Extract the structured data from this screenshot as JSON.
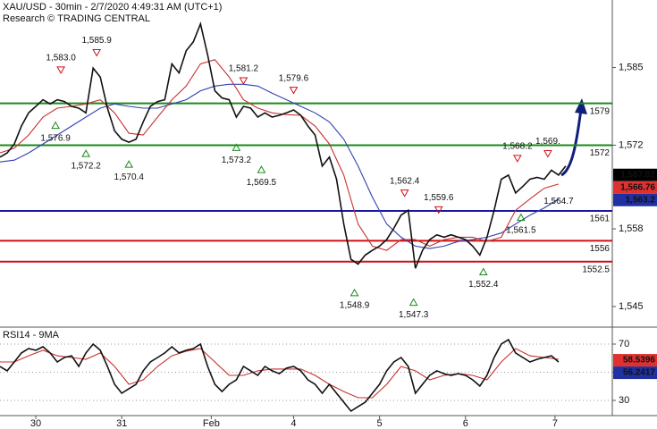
{
  "chart_data": [
    {
      "type": "line",
      "title": "XAU/USD - 30min - 2/7/2020 4:49:31 AM (UTC+1)",
      "subtitle": "Research © TRADING CENTRAL",
      "xlim": [
        0,
        171
      ],
      "xticks": [
        {
          "value": 10,
          "label": "30"
        },
        {
          "value": 34,
          "label": "31"
        },
        {
          "value": 59,
          "label": "Feb"
        },
        {
          "value": 82,
          "label": "4"
        },
        {
          "value": 106,
          "label": "5"
        },
        {
          "value": 130,
          "label": "6"
        },
        {
          "value": 155,
          "label": "7"
        }
      ],
      "ylim": [
        1541.7,
        1596
      ],
      "yticks": [
        {
          "value": 1545,
          "label": "1,545"
        },
        {
          "value": 1558,
          "label": "1,558"
        },
        {
          "value": 1572,
          "label": "1,572"
        },
        {
          "value": 1585,
          "label": "1,585"
        }
      ],
      "grid": false,
      "series": [
        {
          "color": "#3040b0",
          "x": [
            0,
            4,
            8,
            12,
            16,
            20,
            24,
            28,
            32,
            36,
            40,
            44,
            48,
            52,
            56,
            60,
            64,
            68,
            72,
            76,
            80,
            84,
            88,
            92,
            96,
            100,
            104,
            108,
            112,
            116,
            120,
            124,
            128,
            132,
            136,
            140,
            144,
            148,
            152,
            156
          ],
          "values": [
            1569.2,
            1569.5,
            1570.7,
            1572.2,
            1573.7,
            1575.2,
            1576.7,
            1578.2,
            1578.9,
            1578.5,
            1578.2,
            1578.2,
            1578.9,
            1579.6,
            1581.1,
            1581.9,
            1582.2,
            1582.2,
            1581.9,
            1580.7,
            1579.6,
            1578.5,
            1577.4,
            1575.9,
            1573.0,
            1568.5,
            1563.3,
            1558.8,
            1556.6,
            1555.1,
            1554.7,
            1555.1,
            1555.9,
            1556.2,
            1556.6,
            1557.3,
            1558.8,
            1560.3,
            1561.5,
            1563.0
          ]
        },
        {
          "color": "#c83030",
          "x": [
            0,
            4,
            8,
            12,
            16,
            20,
            24,
            28,
            32,
            36,
            40,
            44,
            48,
            52,
            56,
            60,
            64,
            68,
            72,
            76,
            80,
            84,
            88,
            92,
            96,
            100,
            104,
            108,
            112,
            116,
            120,
            124,
            128,
            132,
            136,
            140,
            144,
            148,
            152,
            156
          ],
          "values": [
            1570.7,
            1571.5,
            1573.7,
            1576.7,
            1578.2,
            1578.5,
            1578.9,
            1579.6,
            1577.4,
            1574.0,
            1573.7,
            1576.7,
            1579.6,
            1581.9,
            1585.6,
            1586.3,
            1583.4,
            1579.6,
            1578.2,
            1577.4,
            1577.1,
            1577.0,
            1575.2,
            1572.2,
            1567.0,
            1558.8,
            1555.1,
            1554.4,
            1556.2,
            1556.2,
            1555.1,
            1556.2,
            1556.6,
            1556.6,
            1555.9,
            1556.6,
            1561.1,
            1563.0,
            1564.8,
            1565.5
          ]
        },
        {
          "color": "#111111",
          "x": [
            0,
            2,
            4,
            6,
            8,
            10,
            12,
            14,
            16,
            18,
            20,
            22,
            24,
            26,
            28,
            30,
            32,
            34,
            36,
            38,
            40,
            42,
            44,
            46,
            48,
            50,
            52,
            54,
            56,
            58,
            60,
            62,
            64,
            66,
            68,
            70,
            72,
            74,
            76,
            78,
            80,
            82,
            84,
            86,
            88,
            90,
            92,
            94,
            96,
            98,
            100,
            102,
            104,
            106,
            108,
            110,
            112,
            114,
            116,
            118,
            120,
            122,
            124,
            126,
            128,
            130,
            132,
            134,
            136,
            138,
            140,
            142,
            144,
            146,
            148,
            150,
            152,
            154,
            156,
            158
          ],
          "values": [
            1570.0,
            1570.7,
            1572.2,
            1575.2,
            1577.4,
            1578.5,
            1579.6,
            1578.9,
            1579.6,
            1579.3,
            1578.5,
            1578.2,
            1577.4,
            1584.9,
            1583.4,
            1578.2,
            1574.4,
            1573.0,
            1572.5,
            1573.0,
            1575.9,
            1578.5,
            1579.3,
            1579.6,
            1585.6,
            1584.1,
            1587.8,
            1589.3,
            1592.3,
            1587.1,
            1581.1,
            1579.9,
            1579.6,
            1576.7,
            1578.5,
            1578.2,
            1576.7,
            1577.4,
            1576.7,
            1577.0,
            1577.4,
            1577.9,
            1577.0,
            1575.2,
            1573.7,
            1568.5,
            1570.0,
            1566.3,
            1558.8,
            1552.9,
            1552.1,
            1553.6,
            1554.4,
            1555.1,
            1556.2,
            1558.1,
            1560.3,
            1561.1,
            1551.4,
            1554.4,
            1556.2,
            1557.0,
            1556.6,
            1557.0,
            1556.6,
            1556.2,
            1555.1,
            1553.6,
            1556.6,
            1561.1,
            1566.3,
            1567.0,
            1564.0,
            1565.1,
            1566.3,
            1566.6,
            1566.3,
            1567.8,
            1567.0,
            1568.5
          ]
        }
      ],
      "levels": [
        {
          "value": 1579,
          "color": "#1a8a1a"
        },
        {
          "value": 1572,
          "color": "#1a8a1a"
        },
        {
          "value": 1561,
          "color": "#1a1aa0"
        },
        {
          "value": 1556,
          "color": "#d01010"
        },
        {
          "value": 1552.5,
          "color": "#d01010"
        }
      ],
      "annotations": [
        {
          "label": "1,583.0",
          "value": 1583.0,
          "x": 17,
          "kind": "high"
        },
        {
          "label": "1,585.9",
          "value": 1585.9,
          "x": 27,
          "kind": "high"
        },
        {
          "label": "1,576.9",
          "value": 1576.9,
          "x": 15.5,
          "kind": "low"
        },
        {
          "label": "1,572.2",
          "value": 1572.2,
          "x": 24,
          "kind": "low"
        },
        {
          "label": "1,570.4",
          "value": 1570.4,
          "x": 36,
          "kind": "low"
        },
        {
          "label": "1,581.2",
          "value": 1581.2,
          "x": 68,
          "kind": "high"
        },
        {
          "label": "1,579.6",
          "value": 1579.6,
          "x": 82,
          "kind": "high"
        },
        {
          "label": "1,573.2",
          "value": 1573.2,
          "x": 66,
          "kind": "low"
        },
        {
          "label": "1,569.5",
          "value": 1569.5,
          "x": 73,
          "kind": "low"
        },
        {
          "label": "1,562.4",
          "value": 1562.4,
          "x": 113,
          "kind": "high"
        },
        {
          "label": "1,559.6",
          "value": 1559.6,
          "x": 122.5,
          "kind": "high"
        },
        {
          "label": "1,548.9",
          "value": 1548.9,
          "x": 99,
          "kind": "low"
        },
        {
          "label": "1,547.3",
          "value": 1547.3,
          "x": 115.5,
          "kind": "low"
        },
        {
          "label": "1,552.4",
          "value": 1552.4,
          "x": 135,
          "kind": "low"
        },
        {
          "label": "1,568.2",
          "value": 1568.2,
          "x": 144.5,
          "kind": "high"
        },
        {
          "label": "1,561.5",
          "value": 1561.5,
          "x": 145.5,
          "kind": "low"
        },
        {
          "label": "1,569.",
          "value": 1569,
          "x": 153,
          "kind": "high"
        },
        {
          "label": "1,564.7",
          "value": 1564.7,
          "x": 156,
          "kind": "note"
        }
      ],
      "price_tags": [
        {
          "value": 1567.02,
          "label": "1,567.02",
          "color": "#000000"
        },
        {
          "value": 1566.76,
          "label": "1,566.76",
          "color": "#e03030"
        },
        {
          "value": 1563.2,
          "label": "1,563.2",
          "color": "#2030a0"
        }
      ]
    },
    {
      "type": "line",
      "title": "RSI14 - 9MA",
      "ylim": [
        19.2,
        80.8
      ],
      "yticks": [
        30,
        50,
        70
      ],
      "grid": true,
      "series": [
        {
          "color": "#c83030",
          "x": [
            0,
            4,
            8,
            12,
            16,
            20,
            24,
            28,
            32,
            36,
            40,
            44,
            48,
            52,
            56,
            60,
            64,
            68,
            72,
            76,
            80,
            84,
            88,
            92,
            96,
            100,
            104,
            108,
            112,
            116,
            120,
            124,
            128,
            132,
            136,
            140,
            144,
            148,
            152,
            156
          ],
          "values": [
            57.3,
            57.3,
            61.7,
            65.6,
            61.7,
            60.5,
            59.2,
            63.7,
            54.1,
            41.4,
            44.6,
            54.1,
            61.7,
            64.9,
            66.8,
            57.3,
            47.8,
            47.8,
            51.0,
            52.3,
            52.3,
            52.3,
            47.8,
            41.4,
            36.3,
            31.9,
            31.9,
            41.4,
            54.1,
            51.0,
            44.6,
            47.8,
            49.0,
            47.8,
            44.6,
            57.3,
            66.8,
            61.7,
            60.5,
            59.2
          ]
        },
        {
          "color": "#111111",
          "x": [
            0,
            2,
            4,
            6,
            8,
            10,
            12,
            14,
            16,
            18,
            20,
            22,
            24,
            26,
            28,
            30,
            32,
            34,
            36,
            38,
            40,
            42,
            44,
            46,
            48,
            50,
            52,
            54,
            56,
            58,
            60,
            62,
            64,
            66,
            68,
            70,
            72,
            74,
            76,
            78,
            80,
            82,
            84,
            86,
            88,
            90,
            92,
            94,
            96,
            98,
            100,
            102,
            104,
            106,
            108,
            110,
            112,
            114,
            116,
            118,
            120,
            122,
            124,
            126,
            128,
            130,
            132,
            134,
            136,
            138,
            140,
            142,
            144,
            146,
            148,
            150,
            152,
            154,
            156
          ],
          "values": [
            54.1,
            51.0,
            57.3,
            63.7,
            66.8,
            65.6,
            68.1,
            63.7,
            57.3,
            60.5,
            61.7,
            54.1,
            63.7,
            70,
            65.6,
            54.1,
            41.4,
            35.1,
            38.3,
            41.4,
            51.0,
            57.3,
            60.5,
            63.7,
            68.1,
            63.7,
            65.6,
            66.8,
            70,
            54.1,
            41.4,
            36.3,
            41.4,
            44.6,
            54.1,
            51.0,
            47.8,
            54.1,
            51.0,
            49.0,
            52.9,
            54.1,
            51.0,
            44.6,
            41.4,
            35.1,
            41.4,
            35.1,
            28.7,
            22.4,
            25.6,
            28.7,
            35.1,
            41.4,
            51.0,
            57.3,
            60.5,
            54.1,
            35.1,
            41.4,
            47.8,
            51.0,
            49.0,
            47.8,
            49.0,
            47.8,
            44.6,
            40.2,
            47.8,
            60.5,
            70,
            73.2,
            63.7,
            60.5,
            57.3,
            59.2,
            60.5,
            61.7,
            57.3
          ]
        }
      ],
      "price_tags": [
        {
          "value": 58.5396,
          "label": "58.5396",
          "color": "#e03030"
        },
        {
          "value": 56.2417,
          "label": "56.2417",
          "color": "#2030a0"
        }
      ]
    }
  ]
}
